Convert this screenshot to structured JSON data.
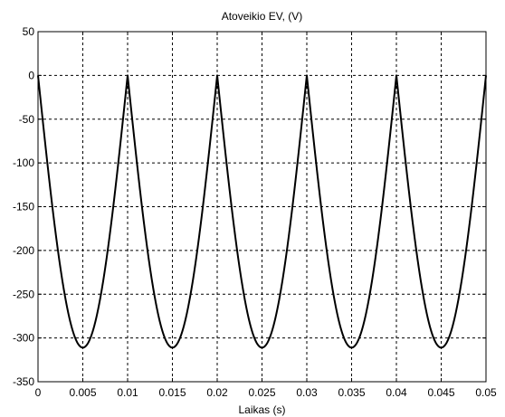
{
  "chart_data": {
    "type": "line",
    "title": "Atoveikio EV,   (V)",
    "xlabel": "Laikas (s)",
    "ylabel": "",
    "xlim": [
      0,
      0.05
    ],
    "ylim": [
      -350,
      50
    ],
    "grid": true,
    "x_ticks": [
      "0",
      "0.005",
      "0.01",
      "0.015",
      "0.02",
      "0.025",
      "0.03",
      "0.035",
      "0.04",
      "0.045",
      "0.05"
    ],
    "y_ticks": [
      "50",
      "0",
      "-50",
      "-100",
      "-150",
      "-200",
      "-250",
      "-300",
      "-350"
    ],
    "series": [
      {
        "description_of_shape": "rectified sine: y = -311*|sin(2*pi*50*t)|, t from 0 to 0.05",
        "amplitude": 311,
        "frequency_hz": 50,
        "color": "#000000"
      }
    ]
  }
}
